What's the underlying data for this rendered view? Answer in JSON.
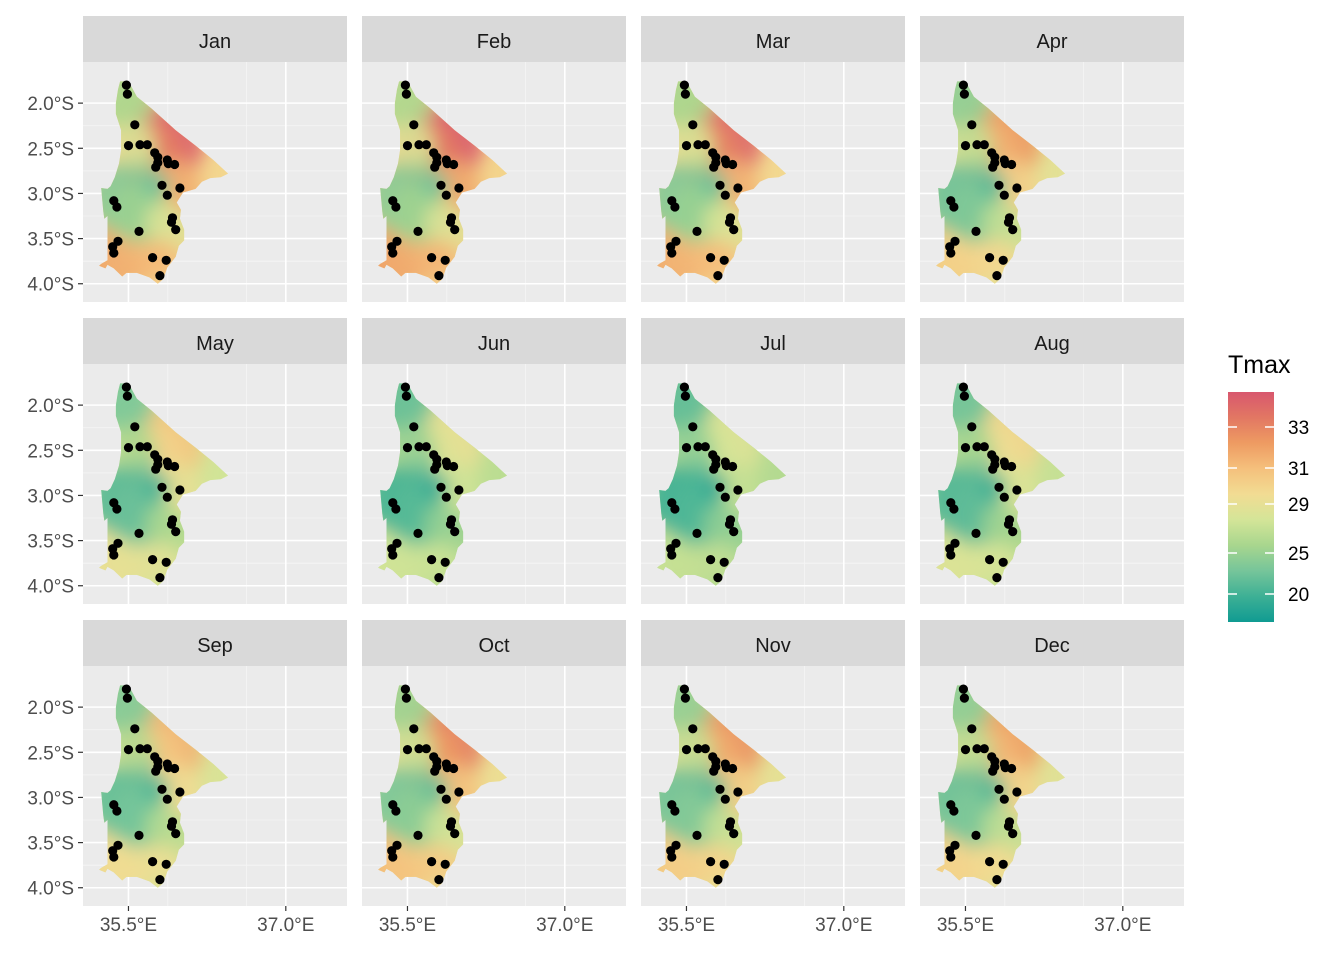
{
  "chart_data": {
    "type": "faceted-map",
    "panels": [
      {
        "label": "Jan",
        "warmth": 1.0
      },
      {
        "label": "Feb",
        "warmth": 1.05
      },
      {
        "label": "Mar",
        "warmth": 0.95
      },
      {
        "label": "Apr",
        "warmth": 0.55
      },
      {
        "label": "May",
        "warmth": 0.2
      },
      {
        "label": "Jun",
        "warmth": -0.1
      },
      {
        "label": "Jul",
        "warmth": -0.2
      },
      {
        "label": "Aug",
        "warmth": 0.05
      },
      {
        "label": "Sep",
        "warmth": 0.35
      },
      {
        "label": "Oct",
        "warmth": 0.75
      },
      {
        "label": "Nov",
        "warmth": 0.6
      },
      {
        "label": "Dec",
        "warmth": 0.5
      }
    ],
    "x_ticks": [
      "35.5°E",
      "37.0°E"
    ],
    "x_tick_values": [
      35.5,
      37.0
    ],
    "y_ticks": [
      "2.0°S",
      "2.5°S",
      "3.0°S",
      "3.5°S",
      "4.0°S"
    ],
    "y_tick_values": [
      -2.0,
      -2.5,
      -3.0,
      -3.5,
      -4.0
    ],
    "xlim": [
      35.2,
      37.45
    ],
    "ylim": [
      -4.18,
      -1.6
    ],
    "legend": {
      "title": "Tmax",
      "ticks": [
        "33",
        "31",
        "29",
        "25",
        "20"
      ],
      "tick_values": [
        33,
        31,
        29,
        25,
        20
      ],
      "range": [
        18,
        35
      ],
      "colors": [
        "#109B92",
        "#3DB095",
        "#76C59A",
        "#A8D68E",
        "#D4E598",
        "#F2DC93",
        "#F5C07C",
        "#EE9B62",
        "#E27763",
        "#D8576E"
      ]
    },
    "stations": [
      [
        35.48,
        -1.8
      ],
      [
        35.49,
        -1.9
      ],
      [
        35.56,
        -2.24
      ],
      [
        35.5,
        -2.47
      ],
      [
        35.61,
        -2.46
      ],
      [
        35.68,
        -2.46
      ],
      [
        35.75,
        -2.55
      ],
      [
        35.78,
        -2.6
      ],
      [
        35.78,
        -2.66
      ],
      [
        35.76,
        -2.71
      ],
      [
        35.87,
        -2.63
      ],
      [
        35.88,
        -2.67
      ],
      [
        35.94,
        -2.68
      ],
      [
        35.82,
        -2.91
      ],
      [
        35.87,
        -3.02
      ],
      [
        35.99,
        -2.94
      ],
      [
        35.92,
        -3.27
      ],
      [
        35.91,
        -3.32
      ],
      [
        35.95,
        -3.4
      ],
      [
        35.36,
        -3.08
      ],
      [
        35.39,
        -3.15
      ],
      [
        35.4,
        -3.53
      ],
      [
        35.35,
        -3.59
      ],
      [
        35.36,
        -3.66
      ],
      [
        35.6,
        -3.42
      ],
      [
        35.73,
        -3.71
      ],
      [
        35.86,
        -3.74
      ],
      [
        35.8,
        -3.91
      ]
    ]
  }
}
